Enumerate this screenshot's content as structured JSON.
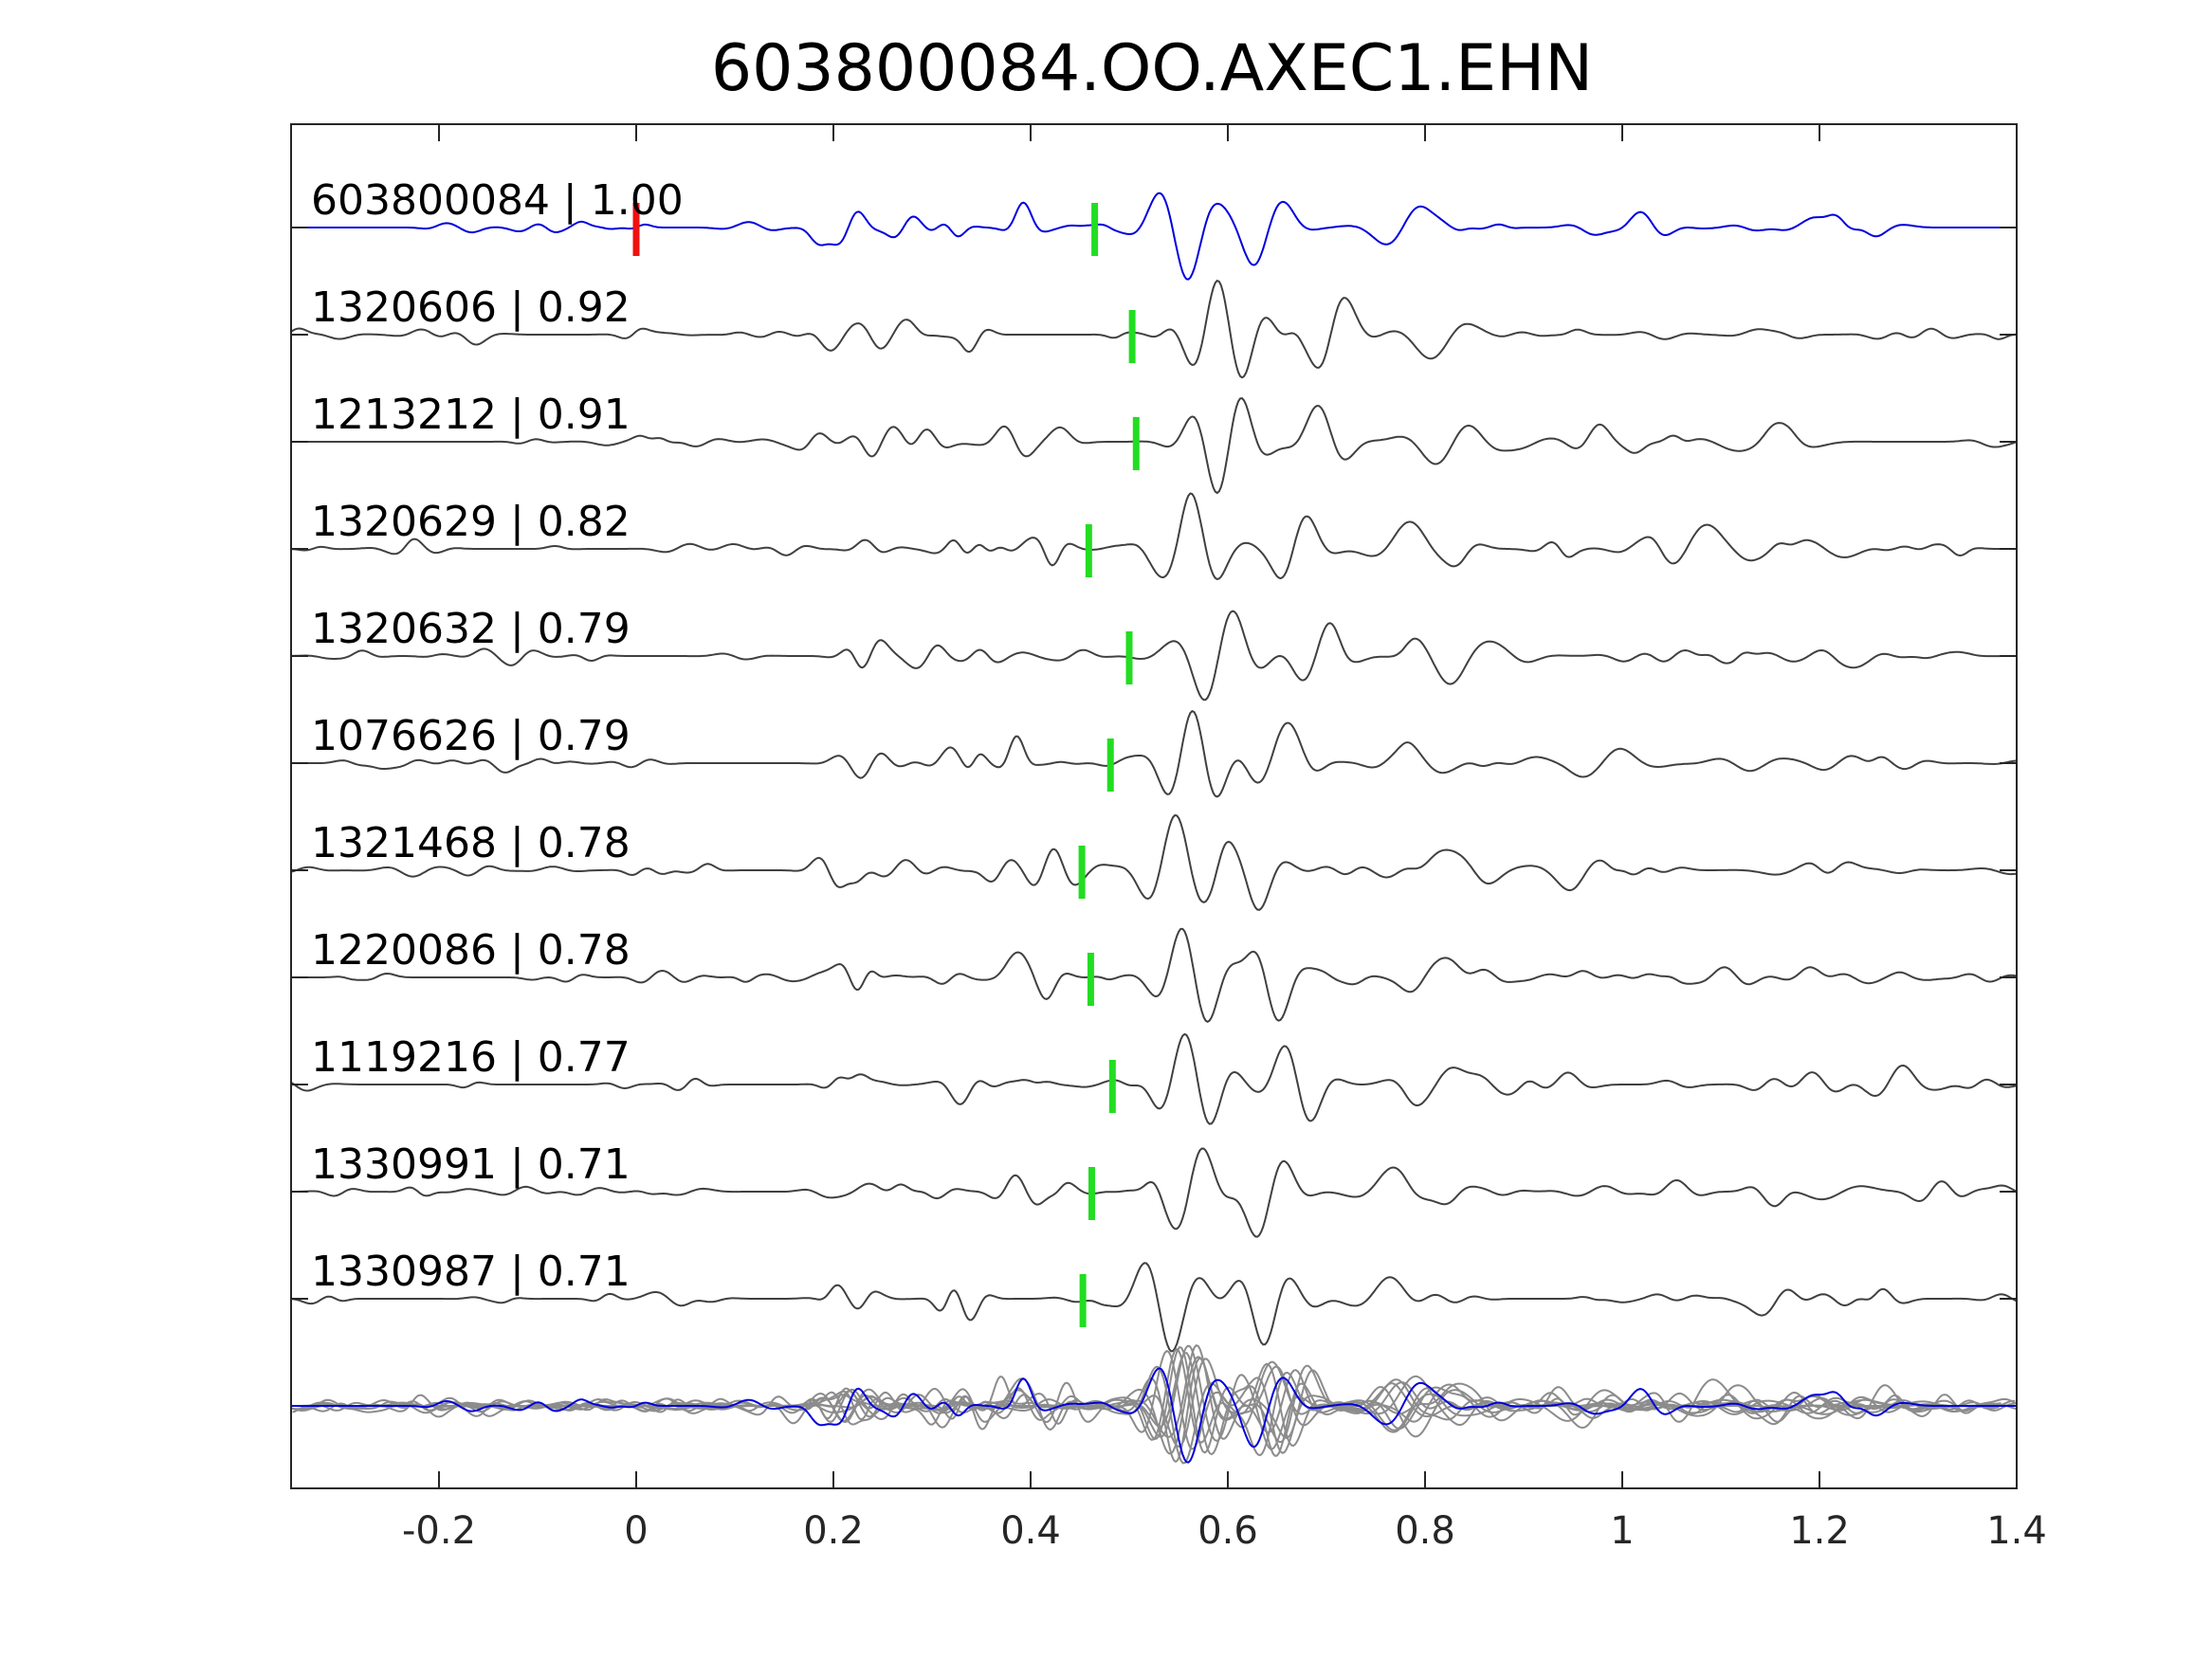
{
  "chart_data": {
    "type": "line",
    "title": "603800084.OO.AXEC1.EHN",
    "xlabel": "",
    "ylabel": "",
    "xlim": [
      -0.35,
      1.4
    ],
    "xticks": [
      -0.2,
      0,
      0.2,
      0.4,
      0.6,
      0.8,
      1,
      1.2,
      1.4
    ],
    "xtick_labels": [
      "-0.2",
      "0",
      "0.2",
      "0.4",
      "0.6",
      "0.8",
      "1",
      "1.2",
      "1.4"
    ],
    "grid": false,
    "legend": "none",
    "colors": {
      "reference": "#0000dd",
      "template": "#404040",
      "stack_template": "#8c8c8c",
      "origin_marker": "#ee1111",
      "pick_marker": "#22dd22",
      "axes": "#262626"
    },
    "origin_marker_x": 0.0,
    "series": [
      {
        "label": "603800084 | 1.00",
        "id": "603800084",
        "correlation": 1.0,
        "pick": 0.465,
        "reference": true
      },
      {
        "label": "1320606 | 0.92",
        "id": "1320606",
        "correlation": 0.92,
        "pick": 0.503
      },
      {
        "label": "1213212 | 0.91",
        "id": "1213212",
        "correlation": 0.91,
        "pick": 0.507
      },
      {
        "label": "1320629 | 0.82",
        "id": "1320629",
        "correlation": 0.82,
        "pick": 0.459
      },
      {
        "label": "1320632 | 0.79",
        "id": "1320632",
        "correlation": 0.79,
        "pick": 0.5
      },
      {
        "label": "1076626 | 0.79",
        "id": "1076626",
        "correlation": 0.79,
        "pick": 0.481
      },
      {
        "label": "1321468 | 0.78",
        "id": "1321468",
        "correlation": 0.78,
        "pick": 0.452
      },
      {
        "label": "1220086 | 0.78",
        "id": "1220086",
        "correlation": 0.78,
        "pick": 0.461
      },
      {
        "label": "1119216 | 0.77",
        "id": "1119216",
        "correlation": 0.77,
        "pick": 0.483
      },
      {
        "label": "1330991 | 0.71",
        "id": "1330991",
        "correlation": 0.71,
        "pick": 0.462
      },
      {
        "label": "1330987 | 0.71",
        "id": "1330987",
        "correlation": 0.71,
        "pick": 0.453
      }
    ]
  }
}
